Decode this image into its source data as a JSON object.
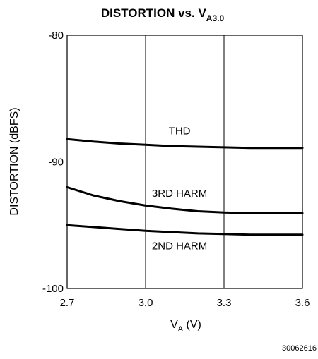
{
  "chart_data": {
    "type": "line",
    "title": {
      "main": "DISTORTION vs. V",
      "subscript": "A3.0"
    },
    "xlabel": {
      "main": "V",
      "subscript": "A",
      "unit": " (V)"
    },
    "ylabel": "DISTORTION (dBFS)",
    "xlim": [
      2.7,
      3.6
    ],
    "ylim": [
      -100,
      -80
    ],
    "x_ticks": [
      "2.7",
      "3.0",
      "3.3",
      "3.6"
    ],
    "y_ticks": [
      "-80",
      "-90",
      "-100"
    ],
    "grid": true,
    "series": [
      {
        "name": "THD",
        "x": [
          2.7,
          2.8,
          2.9,
          3.0,
          3.1,
          3.2,
          3.3,
          3.4,
          3.5,
          3.6
        ],
        "y": [
          -88.2,
          -88.4,
          -88.55,
          -88.65,
          -88.75,
          -88.8,
          -88.85,
          -88.9,
          -88.9,
          -88.9
        ]
      },
      {
        "name": "3RD HARM",
        "x": [
          2.7,
          2.8,
          2.9,
          3.0,
          3.1,
          3.2,
          3.3,
          3.4,
          3.5,
          3.6
        ],
        "y": [
          -92.0,
          -92.65,
          -93.1,
          -93.45,
          -93.7,
          -93.9,
          -94.0,
          -94.05,
          -94.05,
          -94.05
        ]
      },
      {
        "name": "2ND HARM",
        "x": [
          2.7,
          2.8,
          2.9,
          3.0,
          3.1,
          3.2,
          3.3,
          3.4,
          3.5,
          3.6
        ],
        "y": [
          -95.0,
          -95.15,
          -95.3,
          -95.45,
          -95.55,
          -95.65,
          -95.7,
          -95.75,
          -95.75,
          -95.75
        ]
      }
    ]
  },
  "figure_id": "30062616",
  "colors": {
    "line": "#000000",
    "grid": "#000000",
    "background": "#ffffff"
  }
}
